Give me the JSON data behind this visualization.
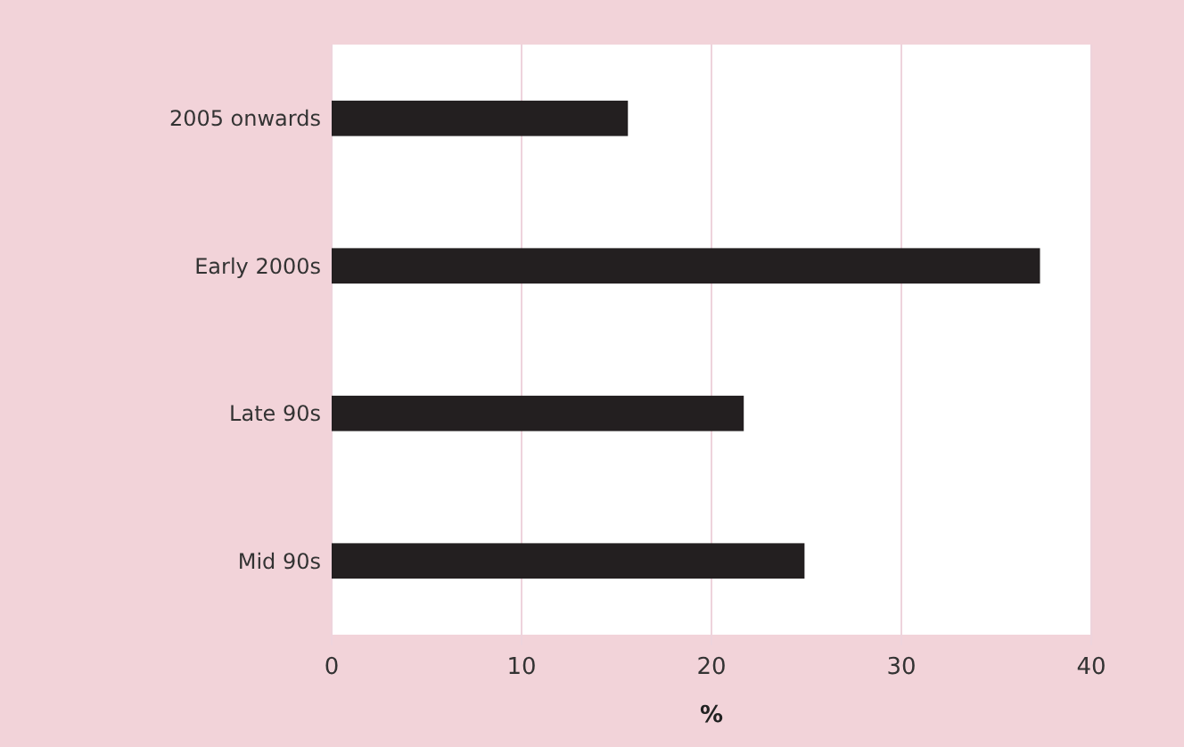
{
  "chart_data": {
    "type": "bar",
    "orientation": "horizontal",
    "categories": [
      "2005 onwards",
      "Early 2000s",
      "Late 90s",
      "Mid 90s"
    ],
    "values": [
      15.6,
      37.3,
      21.7,
      24.9
    ],
    "color": "#231f20",
    "xlabel": "%",
    "xlim": [
      0,
      40
    ],
    "xticks": [
      0,
      10,
      20,
      30,
      40
    ],
    "grid": "x"
  }
}
